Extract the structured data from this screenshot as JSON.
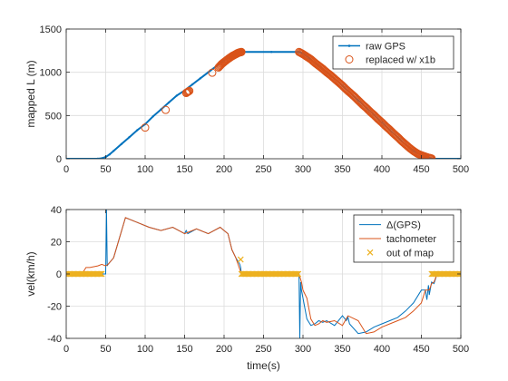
{
  "chart_data": [
    {
      "type": "line",
      "xlabel": "",
      "ylabel": "mapped L (m)",
      "xlim": [
        0,
        500
      ],
      "ylim": [
        0,
        1500
      ],
      "xticks": [
        0,
        50,
        100,
        150,
        200,
        250,
        300,
        350,
        400,
        450,
        500
      ],
      "yticks": [
        0,
        500,
        1000,
        1500
      ],
      "grid": true,
      "legend_position": "top-right",
      "series": [
        {
          "name": "raw GPS",
          "style": "line-with-dots",
          "color": "#0072BD",
          "x": [
            0,
            40,
            45,
            50,
            55,
            60,
            70,
            80,
            90,
            100,
            110,
            120,
            130,
            140,
            150,
            160,
            170,
            180,
            190,
            200,
            210,
            215,
            220,
            225,
            260,
            295,
            300,
            310,
            320,
            330,
            340,
            350,
            360,
            370,
            380,
            390,
            400,
            410,
            420,
            430,
            440,
            450,
            455,
            460,
            463,
            500
          ],
          "y": [
            0,
            0,
            5,
            20,
            50,
            90,
            170,
            250,
            330,
            400,
            490,
            570,
            650,
            730,
            790,
            860,
            930,
            1000,
            1070,
            1140,
            1190,
            1215,
            1230,
            1235,
            1235,
            1235,
            1215,
            1150,
            1075,
            1000,
            925,
            845,
            760,
            675,
            590,
            505,
            420,
            335,
            250,
            165,
            90,
            40,
            20,
            8,
            0,
            0
          ]
        },
        {
          "name": "replaced w/ x1b",
          "style": "circle-markers",
          "color": "#D95319",
          "x": [
            100,
            126,
            152,
            156,
            185,
            193,
            197,
            201,
            206,
            210,
            213,
            216,
            218,
            220,
            222,
            295,
            300,
            305,
            310,
            315,
            320,
            325,
            330,
            335,
            340,
            345,
            350,
            355,
            360,
            365,
            370,
            375,
            380,
            385,
            390,
            395,
            400,
            405,
            410,
            415,
            420,
            425,
            430,
            435,
            440,
            445,
            450,
            455,
            460,
            463
          ],
          "y": [
            360,
            565,
            760,
            785,
            995,
            1055,
            1095,
            1125,
            1160,
            1185,
            1200,
            1215,
            1225,
            1230,
            1235,
            1235,
            1210,
            1180,
            1150,
            1110,
            1075,
            1040,
            1000,
            965,
            925,
            885,
            845,
            800,
            760,
            720,
            675,
            630,
            590,
            545,
            505,
            460,
            420,
            375,
            335,
            290,
            250,
            205,
            165,
            125,
            90,
            60,
            40,
            25,
            10,
            3
          ]
        }
      ]
    },
    {
      "type": "line",
      "xlabel": "time(s)",
      "ylabel": "vel(km/h)",
      "xlim": [
        0,
        500
      ],
      "ylim": [
        -40,
        40
      ],
      "xticks": [
        0,
        50,
        100,
        150,
        200,
        250,
        300,
        350,
        400,
        450,
        500
      ],
      "yticks": [
        -40,
        -20,
        0,
        20,
        40
      ],
      "grid": true,
      "legend_position": "top-right",
      "series": [
        {
          "name": "Δ(GPS)",
          "style": "line",
          "color": "#0072BD",
          "x": [
            0,
            50,
            51,
            52,
            53,
            60,
            75,
            90,
            105,
            120,
            135,
            150,
            152,
            154,
            165,
            180,
            195,
            200,
            205,
            210,
            215,
            220,
            221,
            222,
            295,
            296,
            297,
            298,
            300,
            305,
            310,
            315,
            320,
            325,
            330,
            340,
            350,
            355,
            357,
            359,
            370,
            380,
            390,
            400,
            410,
            420,
            430,
            440,
            450,
            455,
            457,
            459,
            460,
            463,
            466,
            470,
            500
          ],
          "y": [
            0,
            0,
            40,
            5,
            6,
            10,
            35,
            32,
            29,
            27,
            29,
            25,
            27,
            25,
            28,
            25,
            29,
            27,
            25,
            15,
            10,
            6,
            4,
            0,
            0,
            -40,
            -5,
            -10,
            -15,
            -28,
            -32,
            -31,
            -29,
            -30,
            -29,
            -32,
            -26,
            -29,
            -27,
            -31,
            -37,
            -36,
            -33,
            -31,
            -29,
            -27,
            -23,
            -18,
            -10,
            -10,
            -16,
            -7,
            -13,
            -5,
            -6,
            0,
            0
          ]
        },
        {
          "name": "tachometer",
          "style": "line",
          "color": "#D95319",
          "x": [
            20,
            25,
            30,
            40,
            45,
            50,
            53,
            60,
            75,
            90,
            105,
            120,
            135,
            150,
            165,
            180,
            195,
            200,
            205,
            210,
            215,
            222,
            295,
            298,
            300,
            305,
            310,
            315,
            320,
            325,
            330,
            340,
            350,
            357,
            370,
            380,
            390,
            400,
            410,
            420,
            430,
            440,
            450,
            455,
            460,
            463,
            466,
            470
          ],
          "y": [
            0,
            4,
            4,
            5,
            6,
            5,
            6,
            10,
            35,
            32,
            29,
            27,
            29,
            25,
            28,
            25,
            29,
            27,
            25,
            15,
            10,
            0,
            0,
            -5,
            -10,
            -15,
            -28,
            -32,
            -31,
            -29,
            -30,
            -29,
            -32,
            -26,
            -29,
            -37,
            -36,
            -33,
            -31,
            -29,
            -27,
            -23,
            -18,
            -10,
            -10,
            -6,
            -5,
            0
          ]
        },
        {
          "name": "out of map",
          "style": "x-markers",
          "color": "#EDB120",
          "segments": [
            [
              0,
              45
            ],
            [
              222,
              295
            ],
            [
              463,
              500
            ]
          ],
          "points": [
            [
              221,
              9
            ]
          ]
        }
      ]
    }
  ]
}
